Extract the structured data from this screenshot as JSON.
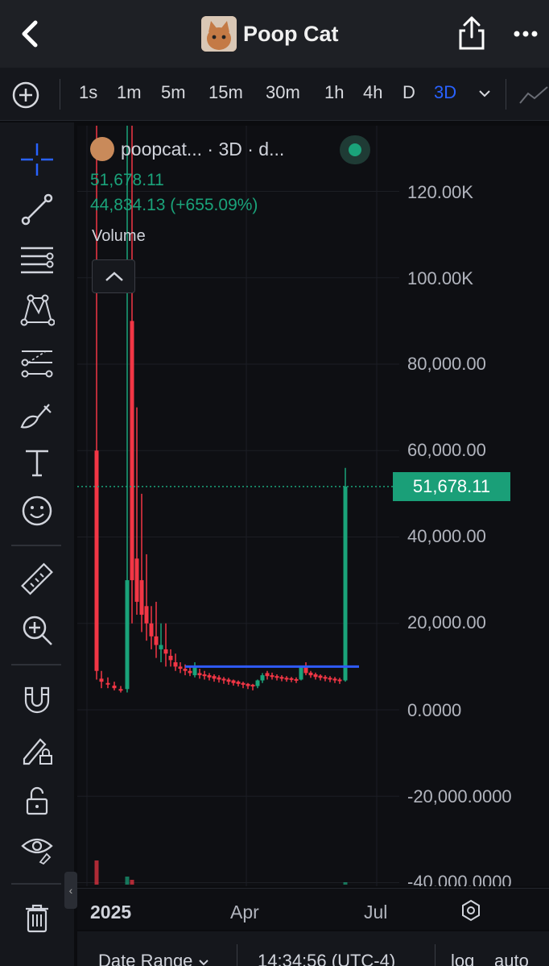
{
  "header": {
    "title": "Poop Cat",
    "back_icon": "chevron-left-icon",
    "share_icon": "share-icon",
    "more_icon": "more-dots-icon"
  },
  "timeframes": {
    "items": [
      "1s",
      "1m",
      "5m",
      "15m",
      "30m",
      "1h",
      "4h",
      "D",
      "3D"
    ],
    "active": "3D"
  },
  "legend": {
    "symbol": "poopcat... · 3D · d...",
    "price": "51,678.11",
    "change": "44,834.13 (+655.09%)",
    "volume_label": "Volume"
  },
  "tools": [
    "crosshair-icon",
    "trendline-icon",
    "fib-lines-icon",
    "pattern-icon",
    "prediction-icon",
    "brush-icon",
    "text-icon",
    "emoji-icon",
    "ruler-icon",
    "zoom-in-icon",
    "magnet-icon",
    "lock-edit-icon",
    "unlock-icon",
    "eye-icon",
    "trash-icon"
  ],
  "colors": {
    "up": "#1aa37a",
    "down": "#f23645",
    "accent": "#2962ff",
    "level_line": "#2f5bff"
  },
  "chart_data": {
    "type": "candlestick",
    "timeframe": "3D",
    "last_price": "51,678.11",
    "y_ticks": [
      "120.00K",
      "100.00K",
      "80,000.00",
      "60,000.00",
      "40,000.00",
      "20,000.00",
      "0.0000",
      "-20,000.0000",
      "-40,000.0000"
    ],
    "x_ticks": [
      "2025",
      "Apr",
      "Jul"
    ],
    "horizontal_level": 10000
  },
  "bottom": {
    "date_range": "Date Range",
    "time": "14:34:56 (UTC-4)",
    "log": "log",
    "auto": "auto"
  }
}
